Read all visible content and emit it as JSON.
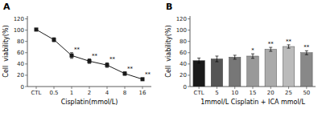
{
  "chart_data": [
    {
      "type": "line",
      "title": "A",
      "x_label": "Cisplatin(mmol/L)",
      "y_label": "Cell  viability(%)",
      "categories": [
        "CTL",
        "0.5",
        "1",
        "2",
        "4",
        "8",
        "16"
      ],
      "values": [
        101,
        83,
        55,
        45,
        38,
        23,
        13
      ],
      "errors": [
        1.5,
        3.5,
        5,
        4,
        4,
        3,
        2
      ],
      "color": "#1a1a1a",
      "marker": "square",
      "annotations": [
        {
          "category": "1",
          "text": "**"
        },
        {
          "category": "2",
          "text": "**"
        },
        {
          "category": "4",
          "text": "**"
        },
        {
          "category": "8",
          "text": "**"
        },
        {
          "category": "16",
          "text": "**"
        }
      ],
      "ylim": [
        0,
        125
      ],
      "yticks": [
        0,
        20,
        40,
        60,
        80,
        100,
        120
      ]
    },
    {
      "type": "bar",
      "title": "B",
      "x_label": "1mmol/L Cisplatin + ICA mmol/L",
      "y_label": "Cell  viability(%)",
      "categories": [
        "CTL",
        "5",
        "10",
        "15",
        "20",
        "25",
        "50"
      ],
      "values": [
        46,
        49,
        52,
        54,
        66,
        71,
        60
      ],
      "errors": [
        4.5,
        5,
        3.5,
        4,
        3.5,
        3,
        3.5
      ],
      "colors": [
        "#1a1a1a",
        "#555555",
        "#777777",
        "#999999",
        "#aaaaaa",
        "#bbbbbb",
        "#888888"
      ],
      "annotations": [
        {
          "category": "15",
          "text": "*"
        },
        {
          "category": "20",
          "text": "**"
        },
        {
          "category": "25",
          "text": "**"
        },
        {
          "category": "50",
          "text": "**"
        }
      ],
      "ylim": [
        0,
        125
      ],
      "yticks": [
        0,
        20,
        40,
        60,
        80,
        100,
        120
      ]
    }
  ]
}
